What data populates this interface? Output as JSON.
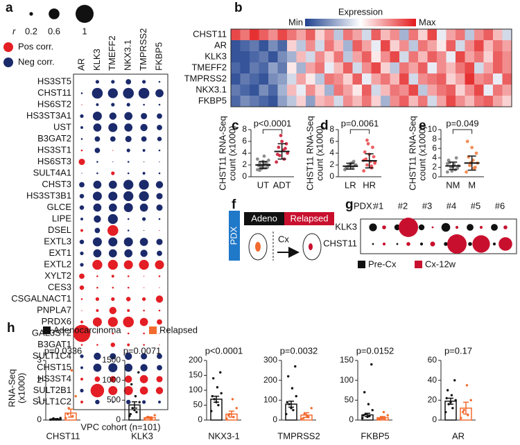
{
  "chart_data": [
    {
      "type": "dotmatrix",
      "panel": "a",
      "size_legend": {
        "label": "r",
        "values": [
          0.2,
          0.6,
          1
        ]
      },
      "color_legend": [
        {
          "name": "Pos corr.",
          "color": "#e31e24"
        },
        {
          "name": "Neg corr.",
          "color": "#1b2a6b"
        }
      ],
      "columns": [
        "AR",
        "KLK3",
        "TMEFF2",
        "NKX3.1",
        "TMPRSS2",
        "FKBP5"
      ],
      "rows": [
        "HS3ST5",
        "CHST11",
        "HS6ST2",
        "HS3ST3A1",
        "UST",
        "B3GAT2",
        "HS3ST1",
        "HS6ST3",
        "SULT4A1",
        "CHST3",
        "HS3ST3B1",
        "GLCE",
        "LIPE",
        "DSEL",
        "EXTL3",
        "EXT1",
        "EXTL2",
        "XYLT2",
        "CES3",
        "CSGALNACT1",
        "PNPLA7",
        "PRDX6",
        "GAL3ST2",
        "B3GAT1",
        "SULT1C4",
        "CHST15",
        "HS3ST4",
        "SULT2B1",
        "SULT1C2"
      ],
      "values": [
        [
          0,
          -0.2,
          -0.2,
          -0.3,
          -0.2,
          -0.1
        ],
        [
          -0.1,
          -0.6,
          -0.55,
          -0.6,
          -0.6,
          -0.45
        ],
        [
          0.05,
          -0.15,
          -0.2,
          -0.2,
          -0.1,
          -0.1
        ],
        [
          -0.2,
          -0.5,
          -0.4,
          -0.45,
          -0.35,
          -0.3
        ],
        [
          -0.15,
          -0.45,
          -0.5,
          -0.45,
          -0.4,
          -0.3
        ],
        [
          -0.1,
          -0.3,
          -0.3,
          -0.35,
          -0.3,
          -0.25
        ],
        [
          0.1,
          -0.3,
          0.05,
          -0.2,
          -0.15,
          -0.1
        ],
        [
          0.35,
          -0.1,
          -0.05,
          -0.1,
          -0.05,
          -0.05
        ],
        [
          -0.05,
          -0.1,
          0.2,
          -0.1,
          -0.15,
          -0.1
        ],
        [
          -0.3,
          -0.45,
          -0.45,
          -0.55,
          -0.55,
          -0.4
        ],
        [
          -0.25,
          -0.5,
          -0.5,
          -0.55,
          -0.55,
          -0.35
        ],
        [
          -0.25,
          -0.45,
          -0.45,
          -0.5,
          -0.45,
          -0.35
        ],
        [
          -0.15,
          -0.4,
          -0.55,
          -0.1,
          -0.2,
          -0.1
        ],
        [
          0.15,
          -0.3,
          0.6,
          -0.1,
          -0.05,
          0.05
        ],
        [
          -0.25,
          -0.5,
          -0.5,
          -0.5,
          -0.45,
          -0.35
        ],
        [
          -0.2,
          -0.45,
          -0.45,
          -0.45,
          -0.4,
          -0.3
        ],
        [
          -0.2,
          0.55,
          0.55,
          0.5,
          0.55,
          0.5
        ],
        [
          0.3,
          0.1,
          0.15,
          0.1,
          0.05,
          0.1
        ],
        [
          0.25,
          0.1,
          0.1,
          0.1,
          0.05,
          0.05
        ],
        [
          0.1,
          0.2,
          0.2,
          0.25,
          0.2,
          0.4
        ],
        [
          0.05,
          0.15,
          0.4,
          0.15,
          0.1,
          0.1
        ],
        [
          0.15,
          0.5,
          0.55,
          0.6,
          0.45,
          0.3
        ],
        [
          0.95,
          0.05,
          0.1,
          0.1,
          0.1,
          0.05
        ],
        [
          0.1,
          0.1,
          0.25,
          0.15,
          0.1,
          0.05
        ],
        [
          -0.2,
          -0.4,
          -0.35,
          -0.4,
          -0.35,
          -0.3
        ],
        [
          -0.15,
          -0.45,
          -0.5,
          -0.45,
          -0.4,
          -0.3
        ],
        [
          0.15,
          0.3,
          0.35,
          0.4,
          0.45,
          0.35
        ],
        [
          -0.2,
          0.75,
          0.5,
          0.5,
          0.45,
          0.4
        ],
        [
          0.15,
          -0.25,
          -0.1,
          -0.25,
          -0.2,
          -0.15
        ]
      ],
      "x_label": "VPC cohort (n=101)"
    },
    {
      "type": "heatmap",
      "panel": "b",
      "legend_title": "Expression",
      "legend_min": "Min",
      "legend_max": "Max",
      "low_color": "#1f418e",
      "mid_color": "#ffffff",
      "high_color": "#e31a1c",
      "rows": [
        "CHST11",
        "AR",
        "KLK3",
        "TMEFF2",
        "TMPRSS2",
        "NKX3.1",
        "FKBP5"
      ],
      "values": [
        [
          0.8,
          0.6,
          0.9,
          0.7,
          0.5,
          0.8,
          0.6,
          0.4,
          0.7,
          0.2,
          0.5,
          -0.3,
          0.6,
          0.4,
          -0.2,
          0.7,
          0.3,
          0.5,
          -0.4,
          0.6,
          0.2,
          0.8,
          -0.1,
          0.4,
          0.6,
          -0.3,
          0.5,
          0.7,
          0.3,
          -0.2
        ],
        [
          -0.9,
          -0.8,
          -0.7,
          -0.9,
          -0.6,
          -0.8,
          0.2,
          -0.3,
          0.5,
          -0.2,
          0.6,
          0.3,
          -0.4,
          0.7,
          0.4,
          -0.1,
          0.8,
          0.2,
          0.5,
          -0.3,
          0.6,
          0.4,
          0.1,
          0.7,
          -0.2,
          0.5,
          0.8,
          0.3,
          0.6,
          0.4
        ],
        [
          -0.9,
          -0.9,
          -0.8,
          -0.7,
          -0.9,
          -0.6,
          -0.4,
          0.3,
          -0.2,
          0.5,
          0.2,
          0.6,
          -0.3,
          0.4,
          0.7,
          0.1,
          0.5,
          0.8,
          -0.2,
          0.6,
          0.3,
          0.7,
          0.5,
          -0.1,
          0.8,
          0.4,
          0.6,
          0.2,
          0.7,
          0.5
        ],
        [
          -0.8,
          -0.9,
          -0.7,
          -0.8,
          -0.5,
          -0.7,
          0.1,
          -0.4,
          0.4,
          0.6,
          -0.1,
          0.3,
          0.7,
          -0.2,
          0.5,
          0.8,
          0.2,
          -0.3,
          0.6,
          0.4,
          0.7,
          -0.1,
          0.5,
          0.3,
          0.6,
          0.8,
          -0.2,
          0.4,
          0.7,
          0.5
        ],
        [
          -0.9,
          -0.7,
          -0.8,
          -0.9,
          -0.6,
          -0.5,
          -0.2,
          0.4,
          0.1,
          -0.3,
          0.6,
          0.5,
          0.2,
          0.7,
          -0.1,
          0.4,
          0.6,
          0.3,
          0.8,
          -0.2,
          0.5,
          0.6,
          0.7,
          0.2,
          0.4,
          0.9,
          0.5,
          0.6,
          -0.1,
          0.7
        ],
        [
          -0.7,
          -0.8,
          -0.9,
          -0.6,
          -0.8,
          -0.4,
          0.3,
          -0.1,
          0.5,
          0.2,
          -0.4,
          0.6,
          0.4,
          0.1,
          0.7,
          -0.2,
          0.3,
          0.6,
          0.5,
          0.8,
          -0.3,
          0.4,
          0.6,
          0.7,
          0.2,
          0.5,
          0.8,
          -0.1,
          0.6,
          0.4
        ],
        [
          -0.8,
          -0.6,
          -0.7,
          -0.8,
          -0.9,
          -0.5,
          -0.3,
          0.2,
          -0.5,
          0.3,
          0.4,
          -0.2,
          0.5,
          0.3,
          0.6,
          0.2,
          -0.4,
          0.5,
          0.7,
          0.3,
          0.6,
          -0.2,
          0.4,
          0.8,
          0.5,
          0.3,
          0.6,
          0.7,
          0.4,
          0.2
        ]
      ]
    },
    {
      "type": "strip",
      "panel": "c",
      "y_label": [
        "CHST11 RNA-Seq",
        "count (x1000)"
      ],
      "annotation": "p<0.0001",
      "categories": [
        "UT",
        "ADT"
      ],
      "colors": [
        "#7a7a7a",
        "#c8102e"
      ],
      "points": [
        [
          1.2,
          1.5,
          1.8,
          2.0,
          2.1,
          2.3,
          1.6,
          2.6,
          1.9,
          2.4,
          1.4,
          3.0,
          2.2,
          1.7,
          2.8,
          3.5,
          1.1
        ],
        [
          2.5,
          3.0,
          3.6,
          4.0,
          4.5,
          5.0,
          5.6,
          6.0,
          3.8,
          4.8,
          7.0
        ]
      ],
      "means": [
        2.0,
        4.3
      ],
      "sds": [
        0.6,
        1.3
      ],
      "ylim": [
        0,
        8
      ],
      "yticks": [
        0,
        2,
        4,
        6,
        8
      ]
    },
    {
      "type": "strip",
      "panel": "d",
      "y_label": [
        "CHST11 RNA-Seq",
        "count (x1000)"
      ],
      "annotation": "p=0.0061",
      "categories": [
        "LR",
        "HR"
      ],
      "colors": [
        "#7a7a7a",
        "#e8434a"
      ],
      "points": [
        [
          1.2,
          1.6,
          1.8,
          2.0,
          2.3,
          1.5,
          1.9,
          2.2,
          1.4,
          2.6
        ],
        [
          1.0,
          1.5,
          2.0,
          2.3,
          2.6,
          3.0,
          3.4,
          3.8,
          4.2,
          5.0,
          5.6,
          2.8,
          1.8,
          6.2,
          2.5
        ]
      ],
      "means": [
        1.8,
        2.7
      ],
      "sds": [
        0.5,
        1.2
      ],
      "ylim": [
        0,
        8
      ],
      "yticks": [
        0,
        2,
        4,
        6,
        8
      ]
    },
    {
      "type": "strip",
      "panel": "e",
      "y_label": [
        "CHST11 RNA-Seq",
        "count (x1000)"
      ],
      "annotation": "p=0.049",
      "categories": [
        "NM",
        "M"
      ],
      "colors": [
        "#7a7a7a",
        "#f07a3a"
      ],
      "points": [
        [
          1.0,
          1.5,
          2.0,
          2.3,
          2.6,
          3.0,
          1.8,
          2.2,
          3.5,
          4.0,
          1.2,
          2.8
        ],
        [
          1.0,
          1.8,
          2.4,
          2.9,
          3.5,
          4.2,
          5.0,
          6.2,
          7.5,
          2.0,
          3.0
        ]
      ],
      "means": [
        2.3,
        2.9
      ],
      "sds": [
        0.8,
        1.5
      ],
      "ylim": [
        0,
        10
      ],
      "yticks": [
        0,
        2,
        4,
        6,
        8,
        10
      ]
    },
    {
      "type": "bubble",
      "panel": "g",
      "title": "PDX:",
      "categories": [
        "#1",
        "#2",
        "#3",
        "#4",
        "#5",
        "#6"
      ],
      "rows": [
        "KLK3",
        "CHST11"
      ],
      "series": [
        {
          "name": "Pre-Cx",
          "color": "#111111",
          "values": [
            [
              0.4,
              0.3,
              0.3,
              0.45,
              0.35,
              0.35
            ],
            [
              0.1,
              0.1,
              0.15,
              0.2,
              0.2,
              0.15
            ]
          ]
        },
        {
          "name": "Cx-12w",
          "color": "#c8102e",
          "values": [
            [
              0.2,
              1.0,
              0.1,
              0.15,
              0.15,
              0.2
            ],
            [
              0.15,
              0.2,
              0.25,
              1.0,
              0.9,
              0.7
            ]
          ]
        }
      ]
    },
    {
      "type": "bar",
      "panel": "h",
      "y_label": [
        "RNA-Seq",
        "(x1000)"
      ],
      "series": [
        {
          "name": "Adenocarcinoma",
          "color": "#111111"
        },
        {
          "name": "Relapsed",
          "color": "#f26b2e"
        }
      ],
      "subplots": [
        {
          "category": "CHST11",
          "annotation": "p=0.0336",
          "ylim": [
            0,
            3
          ],
          "yticks": [
            0,
            1,
            2,
            3
          ],
          "means": [
            0.05,
            0.35
          ],
          "errors": [
            0.02,
            0.2
          ],
          "points": [
            [
              0.02,
              0.05,
              0.08,
              0.1,
              0.03,
              0.04
            ],
            [
              0.1,
              0.2,
              0.6,
              1.2,
              2.5,
              0.3
            ]
          ]
        },
        {
          "category": "KLK3",
          "annotation": "p=0.0071",
          "ylim": [
            0,
            1500
          ],
          "yticks": [
            0,
            500,
            1000,
            1500
          ],
          "means": [
            380,
            60
          ],
          "errors": [
            80,
            20
          ],
          "points": [
            [
              100,
              200,
              300,
              450,
              600,
              900,
              1200,
              250,
              150
            ],
            [
              20,
              40,
              80,
              120,
              10,
              60
            ]
          ]
        },
        {
          "category": "NKX3-1",
          "annotation": "p<0.0001",
          "ylim": [
            0,
            200
          ],
          "yticks": [
            0,
            50,
            100,
            150,
            200
          ],
          "means": [
            70,
            20
          ],
          "errors": [
            10,
            10
          ],
          "points": [
            [
              30,
              50,
              70,
              90,
              110,
              140,
              160,
              60,
              80
            ],
            [
              5,
              10,
              20,
              40,
              70,
              15
            ]
          ]
        },
        {
          "category": "TMPRSS2",
          "annotation": "p=0.0032",
          "ylim": [
            0,
            300
          ],
          "yticks": [
            0,
            100,
            200,
            300
          ],
          "means": [
            80,
            25
          ],
          "errors": [
            15,
            12
          ],
          "points": [
            [
              30,
              50,
              80,
              120,
              160,
              220,
              270,
              60,
              90
            ],
            [
              5,
              15,
              30,
              60,
              20,
              10
            ]
          ]
        },
        {
          "category": "FKBP5",
          "annotation": "p=0.0152",
          "ylim": [
            0,
            150
          ],
          "yticks": [
            0,
            50,
            100,
            150
          ],
          "means": [
            13,
            6
          ],
          "errors": [
            4,
            3
          ],
          "points": [
            [
              5,
              10,
              15,
              25,
              40,
              70,
              140,
              8,
              12
            ],
            [
              2,
              4,
              6,
              12,
              20,
              3
            ]
          ]
        },
        {
          "category": "AR",
          "annotation": "p=0.17",
          "ylim": [
            0,
            60
          ],
          "yticks": [
            0,
            20,
            40,
            60
          ],
          "means": [
            19,
            12
          ],
          "errors": [
            3,
            6
          ],
          "points": [
            [
              8,
              12,
              16,
              20,
              25,
              30,
              40,
              18,
              22
            ],
            [
              2,
              5,
              10,
              20,
              35,
              8
            ]
          ]
        }
      ]
    }
  ],
  "diagram": {
    "panel": "f",
    "side_label": "PDX",
    "stages": [
      "Adeno",
      "Relapsed"
    ],
    "step": "Cx"
  }
}
